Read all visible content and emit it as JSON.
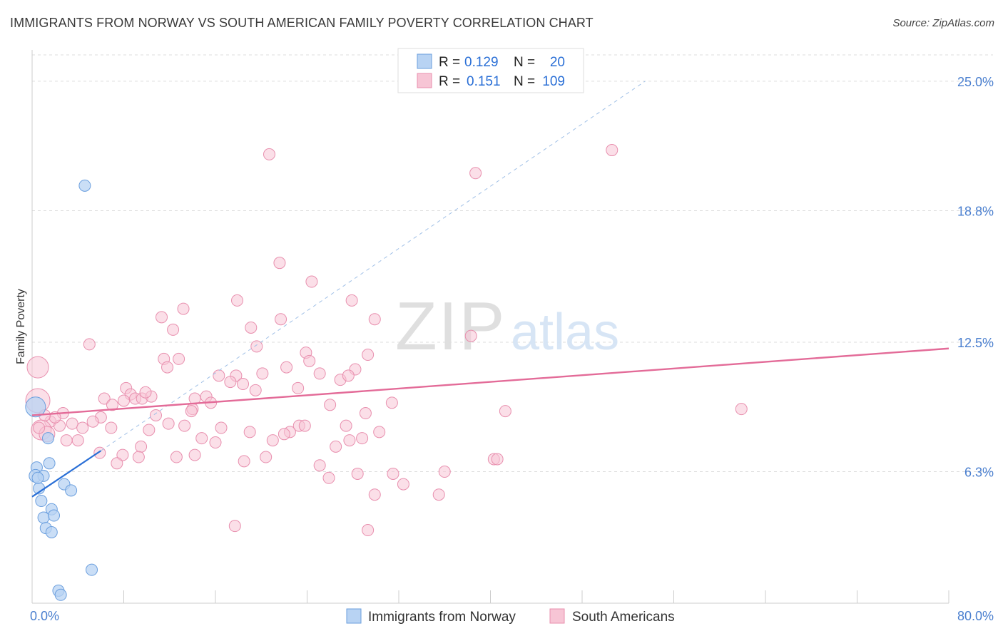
{
  "title": "IMMIGRANTS FROM NORWAY VS SOUTH AMERICAN FAMILY POVERTY CORRELATION CHART",
  "source": "Source: ZipAtlas.com",
  "watermark": {
    "zip": "ZIP",
    "atlas": "atlas"
  },
  "colors": {
    "blue_fill": "#b8d3f3",
    "blue_stroke": "#6b9fde",
    "blue_line": "#2a6fd6",
    "pink_fill": "#f7c5d5",
    "pink_stroke": "#e88fae",
    "pink_line": "#e36b98",
    "axis_text": "#4a7fcf",
    "grid": "#dddddd"
  },
  "chart_data": {
    "type": "scatter",
    "xlabel": "",
    "ylabel": "Family Poverty",
    "xlim": [
      0,
      80
    ],
    "ylim": [
      0,
      26.5
    ],
    "x_tick_labels": [
      {
        "value": 0,
        "label": "0.0%"
      },
      {
        "value": 80,
        "label": "80.0%"
      }
    ],
    "y_tick_labels": [
      {
        "value": 6.3,
        "label": "6.3%"
      },
      {
        "value": 12.5,
        "label": "12.5%"
      },
      {
        "value": 18.8,
        "label": "18.8%"
      },
      {
        "value": 25.0,
        "label": "25.0%"
      }
    ],
    "legend_top": [
      {
        "r_label": "R =",
        "r_value": "0.129",
        "n_label": "N =",
        "n_value": "20",
        "series": "blue"
      },
      {
        "r_label": "R =",
        "r_value": "0.151",
        "n_label": "N =",
        "n_value": "109",
        "series": "pink"
      }
    ],
    "legend_bottom": [
      {
        "label": "Immigrants from Norway",
        "series": "blue"
      },
      {
        "label": "South Americans",
        "series": "pink"
      }
    ],
    "series": [
      {
        "name": "Immigrants from Norway",
        "color": "blue",
        "trend": {
          "x0": 0,
          "y0": 5.1,
          "x1": 6.0,
          "y1": 7.3
        },
        "trend_ext": {
          "x0": 6.0,
          "y0": 7.3,
          "x1": 53.5,
          "y1": 25.0
        },
        "points": [
          [
            4.6,
            20.0,
            8
          ],
          [
            0.3,
            9.4,
            14
          ],
          [
            1.4,
            7.9,
            8
          ],
          [
            1.5,
            6.7,
            8
          ],
          [
            0.4,
            6.5,
            8
          ],
          [
            0.3,
            6.1,
            9
          ],
          [
            1.0,
            6.1,
            8
          ],
          [
            0.6,
            5.5,
            8
          ],
          [
            2.8,
            5.7,
            8
          ],
          [
            3.4,
            5.4,
            8
          ],
          [
            0.8,
            4.9,
            8
          ],
          [
            1.7,
            4.5,
            8
          ],
          [
            1.0,
            4.1,
            8
          ],
          [
            1.9,
            4.2,
            8
          ],
          [
            1.2,
            3.6,
            8
          ],
          [
            1.7,
            3.4,
            8
          ],
          [
            5.2,
            1.6,
            8
          ],
          [
            2.3,
            0.6,
            8
          ],
          [
            2.5,
            0.4,
            8
          ],
          [
            0.5,
            6.0,
            8
          ]
        ]
      },
      {
        "name": "South Americans",
        "color": "pink",
        "trend": {
          "x0": 0,
          "y0": 9.0,
          "x1": 80,
          "y1": 12.2
        },
        "points": [
          [
            20.7,
            21.5,
            8
          ],
          [
            38.7,
            20.6,
            8
          ],
          [
            50.6,
            21.7,
            8
          ],
          [
            5.0,
            12.4,
            8
          ],
          [
            0.5,
            11.3,
            15
          ],
          [
            21.6,
            16.3,
            8
          ],
          [
            24.4,
            15.4,
            8
          ],
          [
            17.9,
            14.5,
            8
          ],
          [
            27.9,
            14.5,
            8
          ],
          [
            13.2,
            14.1,
            8
          ],
          [
            11.3,
            13.7,
            8
          ],
          [
            21.7,
            13.6,
            8
          ],
          [
            29.9,
            13.6,
            8
          ],
          [
            12.3,
            13.1,
            8
          ],
          [
            19.1,
            13.2,
            8
          ],
          [
            38.3,
            12.8,
            8
          ],
          [
            19.6,
            12.3,
            8
          ],
          [
            11.5,
            11.7,
            8
          ],
          [
            12.8,
            11.7,
            8
          ],
          [
            23.9,
            12.0,
            8
          ],
          [
            29.3,
            11.9,
            8
          ],
          [
            24.2,
            11.6,
            8
          ],
          [
            11.8,
            11.3,
            8
          ],
          [
            22.2,
            11.3,
            8
          ],
          [
            25.1,
            11.0,
            8
          ],
          [
            28.2,
            11.2,
            8
          ],
          [
            16.3,
            10.9,
            8
          ],
          [
            17.8,
            10.9,
            8
          ],
          [
            20.1,
            11.0,
            8
          ],
          [
            17.3,
            10.6,
            8
          ],
          [
            26.9,
            10.7,
            8
          ],
          [
            27.6,
            10.9,
            8
          ],
          [
            19.5,
            10.2,
            8
          ],
          [
            23.2,
            10.3,
            8
          ],
          [
            8.2,
            10.3,
            8
          ],
          [
            8.6,
            10.0,
            8
          ],
          [
            6.3,
            9.8,
            8
          ],
          [
            9.0,
            9.8,
            8
          ],
          [
            8.0,
            9.7,
            8
          ],
          [
            9.6,
            9.8,
            8
          ],
          [
            10.4,
            9.9,
            8
          ],
          [
            14.2,
            9.8,
            8
          ],
          [
            15.2,
            9.9,
            8
          ],
          [
            15.6,
            9.6,
            8
          ],
          [
            0.5,
            9.7,
            17
          ],
          [
            2.7,
            9.1,
            8
          ],
          [
            6.0,
            8.9,
            8
          ],
          [
            7.0,
            9.5,
            8
          ],
          [
            10.8,
            9.0,
            8
          ],
          [
            14.0,
            9.3,
            8
          ],
          [
            26.0,
            9.5,
            8
          ],
          [
            29.1,
            9.1,
            8
          ],
          [
            31.4,
            9.6,
            8
          ],
          [
            41.3,
            9.2,
            8
          ],
          [
            61.9,
            9.3,
            8
          ],
          [
            1.6,
            8.7,
            8
          ],
          [
            2.4,
            8.5,
            8
          ],
          [
            3.5,
            8.6,
            8
          ],
          [
            5.3,
            8.7,
            8
          ],
          [
            6.9,
            8.4,
            8
          ],
          [
            4.4,
            8.4,
            8
          ],
          [
            11.9,
            8.6,
            8
          ],
          [
            13.3,
            8.5,
            8
          ],
          [
            16.5,
            8.4,
            8
          ],
          [
            19.0,
            8.2,
            8
          ],
          [
            22.5,
            8.2,
            8
          ],
          [
            23.3,
            8.5,
            8
          ],
          [
            23.8,
            8.5,
            8
          ],
          [
            27.4,
            8.5,
            8
          ],
          [
            0.8,
            8.3,
            14
          ],
          [
            1.3,
            8.1,
            11
          ],
          [
            3.0,
            7.8,
            8
          ],
          [
            4.0,
            7.8,
            8
          ],
          [
            10.2,
            8.3,
            8
          ],
          [
            14.8,
            7.9,
            8
          ],
          [
            21.0,
            7.8,
            8
          ],
          [
            22.0,
            8.1,
            8
          ],
          [
            27.7,
            7.8,
            8
          ],
          [
            28.8,
            7.9,
            8
          ],
          [
            16.0,
            7.7,
            8
          ],
          [
            26.5,
            7.5,
            8
          ],
          [
            9.5,
            7.5,
            8
          ],
          [
            5.9,
            7.2,
            8
          ],
          [
            7.9,
            7.1,
            8
          ],
          [
            9.3,
            7.0,
            8
          ],
          [
            12.6,
            7.0,
            8
          ],
          [
            14.2,
            7.1,
            8
          ],
          [
            20.4,
            7.0,
            8
          ],
          [
            18.5,
            6.8,
            8
          ],
          [
            7.4,
            6.7,
            8
          ],
          [
            25.1,
            6.6,
            8
          ],
          [
            40.3,
            6.9,
            8
          ],
          [
            40.6,
            6.9,
            8
          ],
          [
            28.4,
            6.2,
            8
          ],
          [
            31.5,
            6.2,
            8
          ],
          [
            25.9,
            6.0,
            8
          ],
          [
            36.0,
            6.3,
            8
          ],
          [
            32.4,
            5.7,
            8
          ],
          [
            29.9,
            5.2,
            8
          ],
          [
            35.5,
            5.2,
            8
          ],
          [
            17.7,
            3.7,
            8
          ],
          [
            29.3,
            3.5,
            8
          ],
          [
            0.6,
            8.4,
            8
          ],
          [
            2.0,
            8.9,
            8
          ],
          [
            1.1,
            9.0,
            8
          ],
          [
            18.4,
            10.5,
            8
          ],
          [
            13.9,
            9.2,
            8
          ],
          [
            30.3,
            8.2,
            8
          ],
          [
            9.9,
            10.1,
            8
          ]
        ]
      }
    ]
  }
}
